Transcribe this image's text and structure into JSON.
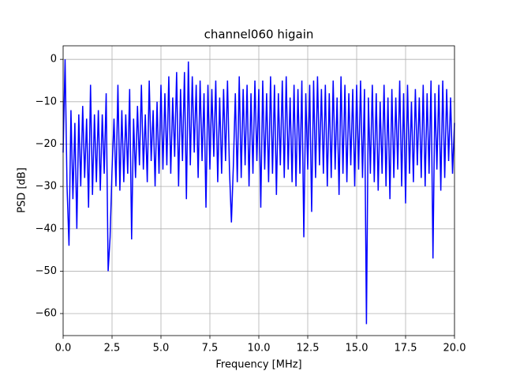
{
  "chart_data": {
    "type": "line",
    "title": "channel060 higain",
    "xlabel": "Frequency [MHz]",
    "ylabel": "PSD [dB]",
    "x": [
      0,
      0.1,
      0.2,
      0.3,
      0.4,
      0.5,
      0.6,
      0.7,
      0.8,
      0.9,
      1,
      1.1,
      1.2,
      1.3,
      1.4,
      1.5,
      1.6,
      1.7,
      1.8,
      1.9,
      2,
      2.1,
      2.2,
      2.3,
      2.4,
      2.5,
      2.6,
      2.7,
      2.8,
      2.9,
      3,
      3.1,
      3.2,
      3.3,
      3.4,
      3.5,
      3.6,
      3.7,
      3.8,
      3.9,
      4,
      4.1,
      4.2,
      4.3,
      4.4,
      4.5,
      4.6,
      4.7,
      4.8,
      4.9,
      5,
      5.1,
      5.2,
      5.3,
      5.4,
      5.5,
      5.6,
      5.7,
      5.8,
      5.9,
      6,
      6.1,
      6.2,
      6.3,
      6.4,
      6.5,
      6.6,
      6.7,
      6.8,
      6.9,
      7,
      7.1,
      7.2,
      7.3,
      7.4,
      7.5,
      7.6,
      7.7,
      7.8,
      7.9,
      8,
      8.1,
      8.2,
      8.3,
      8.4,
      8.5,
      8.6,
      8.7,
      8.8,
      8.9,
      9,
      9.1,
      9.2,
      9.3,
      9.4,
      9.5,
      9.6,
      9.7,
      9.8,
      9.9,
      10,
      10.1,
      10.2,
      10.3,
      10.4,
      10.5,
      10.6,
      10.7,
      10.8,
      10.9,
      11,
      11.1,
      11.2,
      11.3,
      11.4,
      11.5,
      11.6,
      11.7,
      11.8,
      11.9,
      12,
      12.1,
      12.2,
      12.3,
      12.4,
      12.5,
      12.6,
      12.7,
      12.8,
      12.9,
      13,
      13.1,
      13.2,
      13.3,
      13.4,
      13.5,
      13.6,
      13.7,
      13.8,
      13.9,
      14,
      14.1,
      14.2,
      14.3,
      14.4,
      14.5,
      14.6,
      14.7,
      14.8,
      14.9,
      15,
      15.1,
      15.2,
      15.3,
      15.4,
      15.5,
      15.6,
      15.7,
      15.8,
      15.9,
      16,
      16.1,
      16.2,
      16.3,
      16.4,
      16.5,
      16.6,
      16.7,
      16.8,
      16.9,
      17,
      17.1,
      17.2,
      17.3,
      17.4,
      17.5,
      17.6,
      17.7,
      17.8,
      17.9,
      18,
      18.1,
      18.2,
      18.3,
      18.4,
      18.5,
      18.6,
      18.7,
      18.8,
      18.9,
      19,
      19.1,
      19.2,
      19.3,
      19.4,
      19.5,
      19.6,
      19.7,
      19.8,
      19.9,
      20
    ],
    "series": [
      {
        "name": "PSD",
        "color": "#0000ff",
        "values": [
          -22,
          0,
          -30,
          -44,
          -12,
          -33,
          -15,
          -40,
          -13,
          -30,
          -11,
          -28,
          -14,
          -35,
          -6,
          -32,
          -13,
          -29,
          -12,
          -31,
          -13,
          -27,
          -8,
          -50,
          -42,
          -26,
          -14,
          -30,
          -6,
          -31,
          -12,
          -29,
          -13,
          -27,
          -7,
          -42.5,
          -14,
          -28,
          -11,
          -25,
          -6,
          -26,
          -13,
          -29,
          -5,
          -24,
          -12,
          -30,
          -10,
          -27,
          -6,
          -26,
          -8,
          -25,
          -4,
          -27,
          -9,
          -23,
          -3,
          -30,
          -7,
          -24,
          -3,
          -33,
          -0.5,
          -25,
          -4,
          -22,
          -6,
          -28,
          -5,
          -24,
          -8,
          -35,
          -6,
          -26,
          -7,
          -23,
          -5,
          -29,
          -9,
          -27,
          -7,
          -24,
          -5,
          -26,
          -38.5,
          -25,
          -8,
          -29,
          -4,
          -28,
          -7,
          -25,
          -6,
          -30,
          -8,
          -27,
          -5,
          -24,
          -7,
          -35,
          -5,
          -26,
          -8,
          -29,
          -4,
          -27,
          -6,
          -32,
          -8,
          -25,
          -5,
          -28,
          -4,
          -26,
          -9,
          -29,
          -6,
          -30,
          -7,
          -27,
          -5,
          -42,
          -8,
          -26,
          -6,
          -36,
          -5,
          -28,
          -4,
          -25,
          -7,
          -27,
          -6,
          -30,
          -8,
          -28,
          -5,
          -26,
          -9,
          -32,
          -4,
          -27,
          -6,
          -29,
          -8,
          -25,
          -7,
          -30,
          -6,
          -26,
          -5,
          -28,
          -7,
          -62.5,
          -9,
          -27,
          -6,
          -29,
          -8,
          -31,
          -10,
          -27,
          -6,
          -30,
          -9,
          -33,
          -7,
          -28,
          -9,
          -26,
          -5,
          -30,
          -8,
          -34,
          -6,
          -27,
          -10,
          -29,
          -7,
          -25,
          -9,
          -28,
          -6,
          -30,
          -8,
          -27,
          -5,
          -47,
          -8,
          -26,
          -6,
          -31,
          -5,
          -28,
          -7,
          -24,
          -9,
          -27,
          -15
        ]
      }
    ],
    "xlim": [
      0,
      20
    ],
    "ylim": [
      -65.2,
      3.2
    ],
    "xticks": [
      {
        "value": 0,
        "label": "0.0"
      },
      2.5,
      {
        "value": 5,
        "label": "5.0"
      },
      7.5,
      {
        "value": 10,
        "label": "10.0"
      },
      12.5,
      {
        "value": 15,
        "label": "15.0"
      },
      17.5,
      {
        "value": 20,
        "label": "20.0"
      }
    ],
    "yticks": [
      {
        "value": -60,
        "label": "−60"
      },
      {
        "value": -50,
        "label": "−50"
      },
      {
        "value": -40,
        "label": "−40"
      },
      {
        "value": -30,
        "label": "−30"
      },
      {
        "value": -20,
        "label": "−20"
      },
      {
        "value": -10,
        "label": "−10"
      },
      0
    ],
    "grid": true
  }
}
